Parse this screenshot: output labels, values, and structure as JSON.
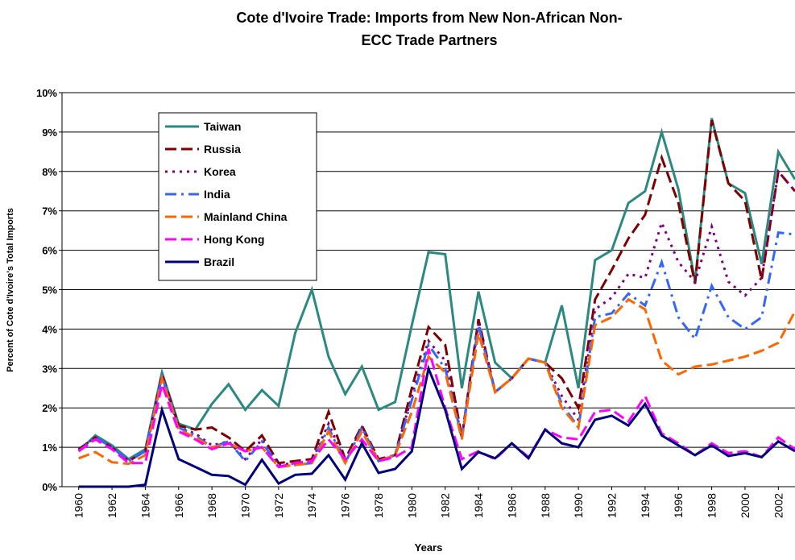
{
  "chart_data": {
    "type": "line",
    "title": "Cote d'Ivoire Trade: Imports from New Non-African Non-ECC Trade Partners",
    "x_label": "Years",
    "y_label": "Percent of Cote d'Ivoire's Total Imports",
    "x": [
      1960,
      1961,
      1962,
      1963,
      1964,
      1965,
      1966,
      1967,
      1968,
      1969,
      1970,
      1971,
      1972,
      1973,
      1974,
      1975,
      1976,
      1977,
      1978,
      1979,
      1980,
      1981,
      1982,
      1983,
      1984,
      1985,
      1986,
      1987,
      1988,
      1989,
      1990,
      1991,
      1992,
      1993,
      1994,
      1995,
      1996,
      1997,
      1998,
      1999,
      2000,
      2001,
      2002,
      2003
    ],
    "xlim": [
      1959,
      2003
    ],
    "xticks": [
      1960,
      1962,
      1964,
      1966,
      1968,
      1970,
      1972,
      1974,
      1976,
      1978,
      1980,
      1982,
      1984,
      1986,
      1988,
      1990,
      1992,
      1994,
      1996,
      1998,
      2000,
      2002
    ],
    "ylim": [
      0,
      10
    ],
    "yticks": [
      {
        "value": 0,
        "label": "0%"
      },
      {
        "value": 1,
        "label": "1%"
      },
      {
        "value": 2,
        "label": "2%"
      },
      {
        "value": 3,
        "label": "3%"
      },
      {
        "value": 4,
        "label": "4%"
      },
      {
        "value": 5,
        "label": "5%"
      },
      {
        "value": 6,
        "label": "6%"
      },
      {
        "value": 7,
        "label": "7%"
      },
      {
        "value": 8,
        "label": "8%"
      },
      {
        "value": 9,
        "label": "9%"
      },
      {
        "value": 10,
        "label": "10%"
      }
    ],
    "grid": true,
    "legend": "upper left",
    "series": [
      {
        "name": "Taiwan",
        "color": "#2a8a80",
        "values": [
          0.9,
          1.3,
          1.05,
          0.7,
          0.95,
          2.9,
          1.6,
          1.45,
          2.1,
          2.6,
          1.95,
          2.45,
          2.05,
          3.9,
          5.0,
          3.3,
          2.35,
          3.05,
          1.95,
          2.15,
          4.1,
          5.95,
          5.9,
          2.5,
          4.95,
          3.15,
          2.75,
          3.25,
          3.15,
          4.6,
          2.5,
          5.75,
          6.0,
          7.2,
          7.5,
          9.0,
          7.55,
          5.2,
          9.35,
          7.7,
          7.45,
          5.65,
          8.5,
          7.8
        ]
      },
      {
        "name": "Russia",
        "color": "#800000",
        "values": [
          0.95,
          1.25,
          1.0,
          0.65,
          0.9,
          2.85,
          1.55,
          1.45,
          1.5,
          1.25,
          0.9,
          1.3,
          0.6,
          0.65,
          0.7,
          1.9,
          0.7,
          1.55,
          0.7,
          0.8,
          2.5,
          4.05,
          3.6,
          1.25,
          4.25,
          2.4,
          2.75,
          3.25,
          3.15,
          2.75,
          2.0,
          4.75,
          5.5,
          6.3,
          6.9,
          8.35,
          7.2,
          5.15,
          9.3,
          7.7,
          7.25,
          5.25,
          8.0,
          7.5
        ]
      },
      {
        "name": "Korea",
        "color": "#800080",
        "values": [
          0.92,
          1.25,
          1.0,
          0.65,
          0.9,
          2.8,
          1.5,
          1.35,
          1.05,
          1.15,
          0.7,
          1.2,
          0.55,
          0.6,
          0.65,
          1.6,
          0.65,
          1.5,
          0.65,
          0.8,
          2.3,
          3.7,
          3.2,
          1.25,
          4.15,
          2.4,
          2.75,
          3.25,
          3.15,
          2.3,
          1.7,
          4.5,
          4.8,
          5.4,
          5.3,
          6.7,
          5.7,
          5.2,
          6.6,
          5.2,
          4.85,
          5.3,
          8.0,
          7.5
        ]
      },
      {
        "name": "India",
        "color": "#3366ff",
        "values": [
          0.9,
          1.25,
          1.0,
          0.65,
          0.9,
          2.8,
          1.5,
          1.3,
          1.0,
          1.15,
          0.65,
          1.15,
          0.5,
          0.55,
          0.6,
          1.5,
          0.6,
          1.5,
          0.65,
          0.8,
          2.2,
          3.6,
          3.0,
          1.25,
          4.1,
          2.4,
          2.75,
          3.25,
          3.15,
          2.1,
          1.5,
          4.3,
          4.4,
          4.9,
          4.6,
          5.7,
          4.3,
          3.75,
          5.1,
          4.3,
          4.0,
          4.3,
          6.45,
          6.4
        ]
      },
      {
        "name": "Mainland China",
        "color": "#ff6600",
        "values": [
          0.72,
          0.88,
          0.62,
          0.58,
          0.8,
          2.75,
          1.45,
          1.25,
          1.0,
          1.1,
          0.9,
          1.0,
          0.5,
          0.55,
          0.6,
          1.4,
          0.6,
          1.4,
          0.65,
          0.8,
          1.9,
          3.3,
          2.9,
          1.2,
          3.9,
          2.4,
          2.75,
          3.25,
          3.15,
          2.0,
          1.5,
          4.1,
          4.3,
          4.75,
          4.5,
          3.2,
          2.85,
          3.05,
          3.1,
          3.2,
          3.3,
          3.45,
          3.65,
          4.45
        ]
      },
      {
        "name": "Hong Kong",
        "color": "#ff00ff",
        "values": [
          0.9,
          1.2,
          0.95,
          0.6,
          0.6,
          2.6,
          1.4,
          1.2,
          0.95,
          1.1,
          0.9,
          1.0,
          0.5,
          0.6,
          0.65,
          1.2,
          0.7,
          1.2,
          0.65,
          0.75,
          1.0,
          3.5,
          2.0,
          0.7,
          0.9,
          0.7,
          1.1,
          0.75,
          1.45,
          1.25,
          1.2,
          1.9,
          1.95,
          1.65,
          2.3,
          1.35,
          1.1,
          0.8,
          1.1,
          0.85,
          0.9,
          0.75,
          1.25,
          0.95
        ]
      },
      {
        "name": "Brazil",
        "color": "#000080",
        "values": [
          0,
          0,
          0,
          0,
          0.05,
          1.95,
          0.7,
          0.5,
          0.3,
          0.27,
          0.05,
          0.68,
          0.08,
          0.3,
          0.33,
          0.8,
          0.18,
          1.1,
          0.35,
          0.45,
          0.9,
          3.0,
          1.95,
          0.45,
          0.88,
          0.72,
          1.1,
          0.72,
          1.45,
          1.1,
          1.0,
          1.7,
          1.8,
          1.55,
          2.1,
          1.3,
          1.05,
          0.8,
          1.05,
          0.78,
          0.85,
          0.75,
          1.15,
          0.9
        ]
      }
    ]
  }
}
